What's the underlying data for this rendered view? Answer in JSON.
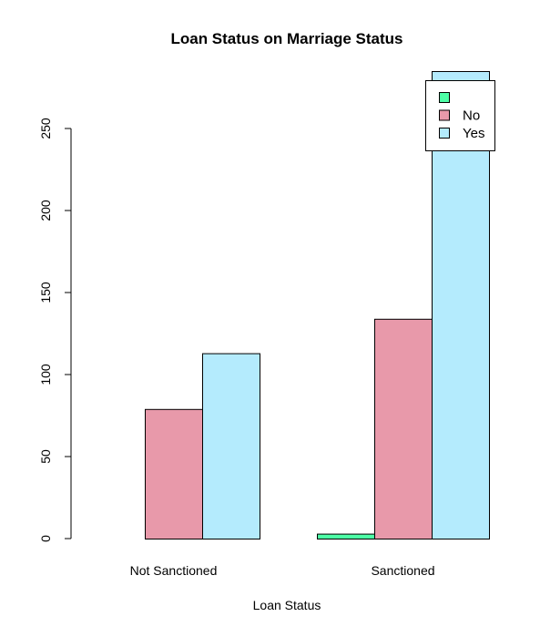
{
  "chart_data": {
    "type": "bar",
    "title": "Loan Status on Marriage Status",
    "xlabel": "Loan Status",
    "ylabel": "",
    "categories": [
      "Not Sanctioned",
      "Sanctioned"
    ],
    "series": [
      {
        "name": "",
        "values": [
          0,
          3
        ],
        "color": "#4dffa6"
      },
      {
        "name": "No",
        "values": [
          79,
          134
        ],
        "color": "#e899aa"
      },
      {
        "name": "Yes",
        "values": [
          113,
          285
        ],
        "color": "#b4ebfd"
      }
    ],
    "ylim": [
      0,
      285
    ],
    "y_ticks": [
      "0",
      "50",
      "100",
      "150",
      "200",
      "250"
    ],
    "grid": false,
    "legend_position": "top-right",
    "bar_outline_color": "#000000",
    "background": "#ffffff"
  }
}
